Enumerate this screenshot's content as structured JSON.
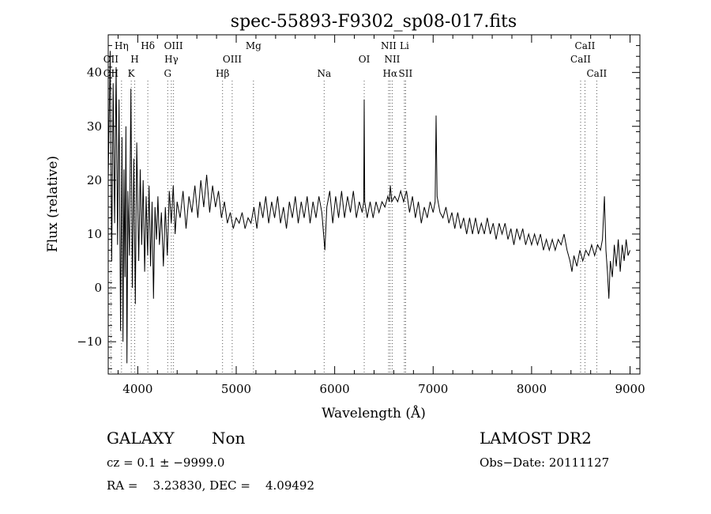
{
  "chart_data": {
    "type": "line",
    "title": "spec-55893-F9302_sp08-017.fits",
    "xlabel": "Wavelength (Å)",
    "ylabel": "Flux (relative)",
    "xlim": [
      3700,
      9100
    ],
    "ylim": [
      -16,
      47
    ],
    "xticks": [
      4000,
      5000,
      6000,
      7000,
      8000,
      9000
    ],
    "yticks": [
      -10,
      0,
      10,
      20,
      30,
      40
    ],
    "x_tick_labels": [
      "4000",
      "5000",
      "6000",
      "7000",
      "8000",
      "9000"
    ],
    "y_tick_labels": [
      "−10",
      "0",
      "10",
      "20",
      "30",
      "40"
    ],
    "spectral_lines": [
      {
        "label": "OII",
        "wavelength": 3727,
        "row": 2
      },
      {
        "label": "Hη",
        "wavelength": 3835,
        "row": 1
      },
      {
        "label": "OII",
        "wavelength": 3727,
        "row": 3
      },
      {
        "label": "H",
        "wavelength": 3969,
        "row": 2
      },
      {
        "label": "K",
        "wavelength": 3934,
        "row": 3
      },
      {
        "label": "Hδ",
        "wavelength": 4102,
        "row": 1
      },
      {
        "label": "OIII",
        "wavelength": 4363,
        "row": 1
      },
      {
        "label": "Hγ",
        "wavelength": 4341,
        "row": 2
      },
      {
        "label": "G",
        "wavelength": 4304,
        "row": 3
      },
      {
        "label": "OIII",
        "wavelength": 4959,
        "row": 2
      },
      {
        "label": "Hβ",
        "wavelength": 4861,
        "row": 3
      },
      {
        "label": "Mg",
        "wavelength": 5175,
        "row": 1
      },
      {
        "label": "Na",
        "wavelength": 5893,
        "row": 3
      },
      {
        "label": "OI",
        "wavelength": 6300,
        "row": 2
      },
      {
        "label": "NII",
        "wavelength": 6548,
        "row": 1
      },
      {
        "label": "Li",
        "wavelength": 6708,
        "row": 1
      },
      {
        "label": "NII",
        "wavelength": 6584,
        "row": 2
      },
      {
        "label": "Hα",
        "wavelength": 6563,
        "row": 3
      },
      {
        "label": "SII",
        "wavelength": 6720,
        "row": 3
      },
      {
        "label": "CaII",
        "wavelength": 8542,
        "row": 1
      },
      {
        "label": "CaII",
        "wavelength": 8498,
        "row": 2
      },
      {
        "label": "CaII",
        "wavelength": 8662,
        "row": 3
      }
    ],
    "series": [
      {
        "name": "flux",
        "points": [
          [
            3700,
            20
          ],
          [
            3720,
            44
          ],
          [
            3735,
            5
          ],
          [
            3750,
            38
          ],
          [
            3765,
            12
          ],
          [
            3780,
            41
          ],
          [
            3795,
            8
          ],
          [
            3810,
            35
          ],
          [
            3825,
            -8
          ],
          [
            3840,
            28
          ],
          [
            3850,
            -10
          ],
          [
            3860,
            22
          ],
          [
            3870,
            2
          ],
          [
            3880,
            30
          ],
          [
            3890,
            -14
          ],
          [
            3900,
            18
          ],
          [
            3915,
            6
          ],
          [
            3930,
            37
          ],
          [
            3945,
            0
          ],
          [
            3960,
            24
          ],
          [
            3975,
            -3
          ],
          [
            3990,
            27
          ],
          [
            4010,
            5
          ],
          [
            4025,
            22
          ],
          [
            4040,
            8
          ],
          [
            4055,
            20
          ],
          [
            4070,
            3
          ],
          [
            4085,
            17
          ],
          [
            4100,
            6
          ],
          [
            4115,
            19
          ],
          [
            4130,
            4
          ],
          [
            4145,
            16
          ],
          [
            4160,
            -2
          ],
          [
            4175,
            15
          ],
          [
            4190,
            9
          ],
          [
            4205,
            17
          ],
          [
            4220,
            8
          ],
          [
            4240,
            14
          ],
          [
            4260,
            4
          ],
          [
            4280,
            15
          ],
          [
            4300,
            6
          ],
          [
            4320,
            18
          ],
          [
            4340,
            12
          ],
          [
            4360,
            19
          ],
          [
            4380,
            10
          ],
          [
            4400,
            16
          ],
          [
            4430,
            13
          ],
          [
            4460,
            18
          ],
          [
            4490,
            11
          ],
          [
            4520,
            17
          ],
          [
            4550,
            14
          ],
          [
            4580,
            19
          ],
          [
            4610,
            13
          ],
          [
            4640,
            20
          ],
          [
            4670,
            15
          ],
          [
            4700,
            21
          ],
          [
            4730,
            14
          ],
          [
            4760,
            19
          ],
          [
            4790,
            15
          ],
          [
            4820,
            18
          ],
          [
            4850,
            13
          ],
          [
            4880,
            16
          ],
          [
            4910,
            12
          ],
          [
            4940,
            14
          ],
          [
            4970,
            11
          ],
          [
            5000,
            13
          ],
          [
            5030,
            12
          ],
          [
            5060,
            14
          ],
          [
            5090,
            11
          ],
          [
            5120,
            13
          ],
          [
            5150,
            12
          ],
          [
            5180,
            15
          ],
          [
            5210,
            11
          ],
          [
            5240,
            16
          ],
          [
            5270,
            13
          ],
          [
            5300,
            17
          ],
          [
            5330,
            12
          ],
          [
            5360,
            16
          ],
          [
            5390,
            13
          ],
          [
            5420,
            17
          ],
          [
            5450,
            12
          ],
          [
            5480,
            15
          ],
          [
            5510,
            11
          ],
          [
            5540,
            16
          ],
          [
            5570,
            13
          ],
          [
            5600,
            17
          ],
          [
            5630,
            12
          ],
          [
            5660,
            16
          ],
          [
            5690,
            13
          ],
          [
            5720,
            17
          ],
          [
            5750,
            12
          ],
          [
            5780,
            16
          ],
          [
            5810,
            13
          ],
          [
            5840,
            17
          ],
          [
            5870,
            14
          ],
          [
            5900,
            7
          ],
          [
            5920,
            15
          ],
          [
            5950,
            18
          ],
          [
            5980,
            12
          ],
          [
            6010,
            17
          ],
          [
            6040,
            13
          ],
          [
            6070,
            18
          ],
          [
            6100,
            13
          ],
          [
            6130,
            17
          ],
          [
            6160,
            14
          ],
          [
            6190,
            18
          ],
          [
            6220,
            13
          ],
          [
            6250,
            16
          ],
          [
            6280,
            14
          ],
          [
            6295,
            16
          ],
          [
            6300,
            35
          ],
          [
            6305,
            16
          ],
          [
            6330,
            13
          ],
          [
            6360,
            16
          ],
          [
            6390,
            13
          ],
          [
            6420,
            16
          ],
          [
            6450,
            14
          ],
          [
            6480,
            16
          ],
          [
            6510,
            15
          ],
          [
            6540,
            17
          ],
          [
            6555,
            16
          ],
          [
            6565,
            19
          ],
          [
            6580,
            16
          ],
          [
            6610,
            17
          ],
          [
            6640,
            16
          ],
          [
            6670,
            18
          ],
          [
            6700,
            16
          ],
          [
            6730,
            18
          ],
          [
            6760,
            14
          ],
          [
            6790,
            17
          ],
          [
            6820,
            13
          ],
          [
            6850,
            16
          ],
          [
            6880,
            12
          ],
          [
            6910,
            15
          ],
          [
            6940,
            13
          ],
          [
            6970,
            16
          ],
          [
            7000,
            14
          ],
          [
            7020,
            16
          ],
          [
            7030,
            32
          ],
          [
            7040,
            17
          ],
          [
            7070,
            14
          ],
          [
            7100,
            13
          ],
          [
            7130,
            15
          ],
          [
            7160,
            12
          ],
          [
            7190,
            14
          ],
          [
            7220,
            11
          ],
          [
            7250,
            14
          ],
          [
            7280,
            11
          ],
          [
            7310,
            13
          ],
          [
            7340,
            10
          ],
          [
            7370,
            13
          ],
          [
            7400,
            10
          ],
          [
            7430,
            13
          ],
          [
            7460,
            10
          ],
          [
            7490,
            12
          ],
          [
            7520,
            10
          ],
          [
            7550,
            13
          ],
          [
            7580,
            10
          ],
          [
            7610,
            12
          ],
          [
            7640,
            9
          ],
          [
            7670,
            12
          ],
          [
            7700,
            10
          ],
          [
            7730,
            12
          ],
          [
            7760,
            9
          ],
          [
            7790,
            11
          ],
          [
            7820,
            8
          ],
          [
            7850,
            11
          ],
          [
            7880,
            9
          ],
          [
            7910,
            11
          ],
          [
            7940,
            8
          ],
          [
            7970,
            10
          ],
          [
            8000,
            8
          ],
          [
            8030,
            10
          ],
          [
            8060,
            8
          ],
          [
            8090,
            10
          ],
          [
            8120,
            7
          ],
          [
            8150,
            9
          ],
          [
            8180,
            7
          ],
          [
            8210,
            9
          ],
          [
            8240,
            7
          ],
          [
            8270,
            9
          ],
          [
            8300,
            8
          ],
          [
            8330,
            10
          ],
          [
            8360,
            7
          ],
          [
            8390,
            5
          ],
          [
            8410,
            3
          ],
          [
            8430,
            6
          ],
          [
            8460,
            4
          ],
          [
            8490,
            7
          ],
          [
            8520,
            5
          ],
          [
            8550,
            7
          ],
          [
            8580,
            6
          ],
          [
            8610,
            8
          ],
          [
            8640,
            6
          ],
          [
            8670,
            8
          ],
          [
            8700,
            7
          ],
          [
            8720,
            9
          ],
          [
            8740,
            17
          ],
          [
            8755,
            7
          ],
          [
            8770,
            3
          ],
          [
            8785,
            -2
          ],
          [
            8800,
            5
          ],
          [
            8820,
            2
          ],
          [
            8840,
            8
          ],
          [
            8860,
            4
          ],
          [
            8880,
            9
          ],
          [
            8900,
            3
          ],
          [
            8920,
            8
          ],
          [
            8940,
            5
          ],
          [
            8960,
            9
          ],
          [
            8980,
            6
          ],
          [
            9000,
            7
          ]
        ]
      }
    ]
  },
  "info": {
    "class_label": "GALAXY",
    "subclass_label": "Non",
    "survey": "LAMOST DR2",
    "cz_text": "cz = 0.1 ± −9999.0",
    "obs_date": "Obs−Date: 20111127",
    "radec_text": "RA =    3.23830, DEC =    4.09492"
  }
}
